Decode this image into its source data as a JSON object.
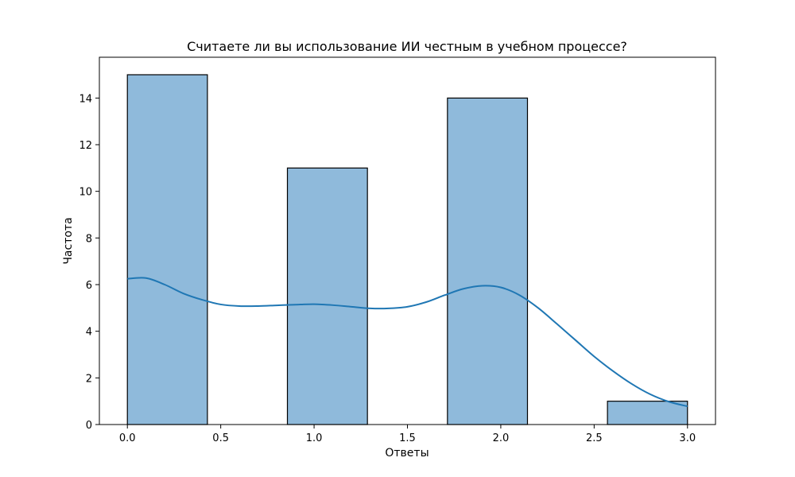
{
  "chart_data": {
    "type": "bar",
    "subtype": "histogram-with-kde",
    "title": "Считаете ли вы использование ИИ честным в учебном процессе?",
    "xlabel": "Ответы",
    "ylabel": "Частота",
    "xlim": [
      -0.15,
      3.15
    ],
    "ylim": [
      0,
      15.75
    ],
    "xticks": [
      0.0,
      0.5,
      1.0,
      1.5,
      2.0,
      2.5,
      3.0
    ],
    "xtick_labels": [
      "0.0",
      "0.5",
      "1.0",
      "1.5",
      "2.0",
      "2.5",
      "3.0"
    ],
    "yticks": [
      0,
      2,
      4,
      6,
      8,
      10,
      12,
      14
    ],
    "ytick_labels": [
      "0",
      "2",
      "4",
      "6",
      "8",
      "10",
      "12",
      "14"
    ],
    "bins": [
      {
        "x0": 0.0,
        "x1": 0.4286,
        "count": 15
      },
      {
        "x0": 0.8571,
        "x1": 1.2857,
        "count": 11
      },
      {
        "x0": 1.7143,
        "x1": 2.1429,
        "count": 14
      },
      {
        "x0": 2.5714,
        "x1": 3.0,
        "count": 1
      }
    ],
    "kde": {
      "x": [
        0.0,
        0.1,
        0.2,
        0.3,
        0.4,
        0.5,
        0.6,
        0.7,
        0.8,
        0.9,
        1.0,
        1.1,
        1.2,
        1.3,
        1.4,
        1.5,
        1.6,
        1.7,
        1.8,
        1.9,
        2.0,
        2.1,
        2.2,
        2.3,
        2.4,
        2.5,
        2.6,
        2.7,
        2.8,
        2.9,
        3.0
      ],
      "y": [
        6.25,
        6.28,
        6.0,
        5.62,
        5.35,
        5.15,
        5.08,
        5.08,
        5.11,
        5.14,
        5.16,
        5.12,
        5.05,
        4.98,
        4.98,
        5.05,
        5.25,
        5.55,
        5.82,
        5.95,
        5.88,
        5.55,
        5.0,
        4.32,
        3.62,
        2.92,
        2.3,
        1.75,
        1.3,
        0.98,
        0.78
      ]
    },
    "grid": false,
    "colors": {
      "bar_fill": "#8fbadb",
      "bar_edge": "#000000",
      "kde_line": "#1f77b4",
      "axis": "#000000"
    }
  }
}
